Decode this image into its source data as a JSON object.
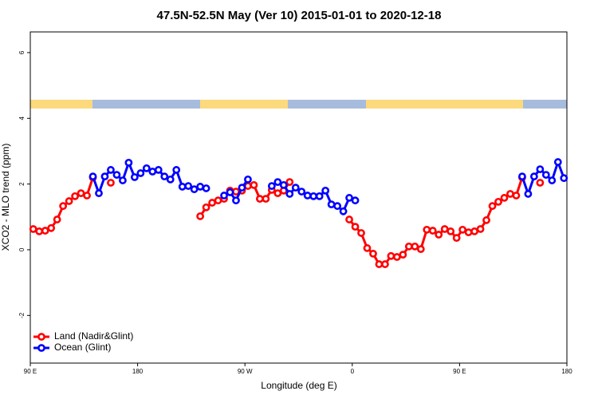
{
  "chart_data": {
    "type": "line",
    "title": "47.5N-52.5N May (Ver 10)   2015-01-01 to 2020-12-18",
    "x_label": "Longitude (deg E)",
    "y_label": "XCO2 - MLO trend (ppm)",
    "x": [
      92.5,
      97.5,
      102.5,
      107.5,
      112.5,
      117.5,
      122.5,
      127.5,
      132.5,
      137.5,
      142.5,
      147.5,
      152.5,
      157.5,
      162.5,
      167.5,
      172.5,
      177.5,
      182.5,
      187.5,
      192.5,
      197.5,
      202.5,
      207.5,
      212.5,
      217.5,
      222.5,
      227.5,
      232.5,
      237.5,
      242.5,
      247.5,
      252.5,
      257.5,
      262.5,
      267.5,
      272.5,
      277.5,
      282.5,
      287.5,
      292.5,
      297.5,
      302.5,
      307.5,
      312.5,
      317.5,
      322.5,
      327.5,
      332.5,
      337.5,
      342.5,
      347.5,
      352.5,
      357.5,
      362.5,
      367.5,
      372.5,
      377.5,
      382.5,
      387.5,
      392.5,
      397.5,
      402.5,
      407.5,
      412.5,
      417.5,
      422.5,
      427.5,
      432.5,
      437.5,
      442.5,
      447.5,
      452.5,
      457.5,
      462.5,
      467.5,
      472.5,
      477.5,
      482.5,
      487.5,
      492.5,
      497.5,
      502.5,
      507.5,
      512.5,
      517.5,
      522.5,
      527.5,
      532.5,
      537.5
    ],
    "series": [
      {
        "name": "Land (Nadir&Glint)",
        "color": "#ff0000",
        "values": [
          0.63,
          0.56,
          0.58,
          0.66,
          0.92,
          1.33,
          1.48,
          1.63,
          1.72,
          1.65,
          2.2,
          null,
          null,
          2.04,
          null,
          null,
          null,
          null,
          null,
          null,
          null,
          null,
          null,
          null,
          null,
          null,
          null,
          null,
          1.02,
          1.29,
          1.43,
          1.5,
          1.55,
          1.8,
          1.77,
          1.8,
          1.94,
          1.97,
          1.55,
          1.55,
          1.82,
          1.72,
          1.8,
          2.06,
          null,
          null,
          null,
          null,
          null,
          null,
          null,
          null,
          null,
          0.92,
          0.7,
          0.51,
          0.05,
          -0.12,
          -0.44,
          -0.44,
          -0.19,
          -0.22,
          -0.15,
          0.1,
          0.1,
          0.02,
          0.61,
          0.58,
          0.46,
          0.63,
          0.56,
          0.36,
          0.61,
          0.53,
          0.56,
          0.63,
          0.9,
          1.33,
          1.46,
          1.58,
          1.7,
          1.65,
          2.2,
          null,
          null,
          2.04,
          null,
          null,
          null,
          null
        ]
      },
      {
        "name": "Ocean (Glint)",
        "color": "#0000ff",
        "values": [
          null,
          null,
          null,
          null,
          null,
          null,
          null,
          null,
          null,
          null,
          2.23,
          1.72,
          2.23,
          2.43,
          2.28,
          2.11,
          2.65,
          2.21,
          2.33,
          2.48,
          2.38,
          2.43,
          2.23,
          2.14,
          2.43,
          1.92,
          1.94,
          1.84,
          1.92,
          1.87,
          null,
          null,
          1.65,
          1.75,
          1.5,
          1.89,
          2.14,
          null,
          null,
          null,
          1.94,
          2.06,
          1.97,
          1.7,
          1.89,
          1.77,
          1.65,
          1.63,
          1.63,
          1.8,
          1.38,
          1.33,
          1.17,
          1.58,
          1.5,
          null,
          null,
          null,
          null,
          null,
          null,
          null,
          null,
          null,
          null,
          null,
          null,
          null,
          null,
          null,
          null,
          null,
          null,
          null,
          null,
          null,
          null,
          null,
          null,
          null,
          null,
          null,
          2.23,
          1.7,
          2.23,
          2.45,
          2.28,
          2.11,
          2.67,
          2.18
        ]
      }
    ],
    "xlim": [
      90,
      540
    ],
    "xticks": [
      {
        "value": 90,
        "label": "90 E"
      },
      180,
      {
        "value": 270,
        "label": "90 W"
      },
      {
        "value": 360,
        "label": "0"
      },
      {
        "value": 450,
        "label": "90 E"
      },
      {
        "value": 540,
        "label": "180"
      }
    ],
    "ylim": [
      -3.45,
      6.63
    ],
    "yticks": [
      -2,
      0,
      2,
      4,
      6
    ],
    "legend": "bottom-left"
  }
}
